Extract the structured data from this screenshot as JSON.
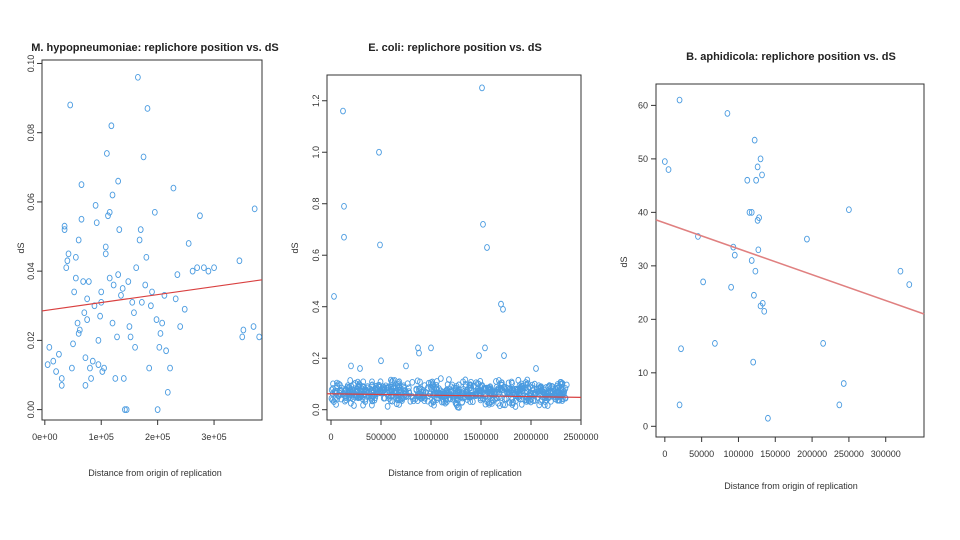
{
  "chart_data": [
    {
      "type": "scatter",
      "title": "M. hypopneumoniae: replichore position vs. dS",
      "xlabel": "Distance from origin of replication",
      "ylabel": "dS",
      "xlim": [
        -5000,
        385000
      ],
      "ylim": [
        -0.003,
        0.101
      ],
      "xticks": [
        0,
        100000,
        200000,
        300000
      ],
      "xtick_labels": [
        "0e+00",
        "1e+05",
        "2e+05",
        "3e+05"
      ],
      "yticks": [
        0.0,
        0.02,
        0.04,
        0.06,
        0.08,
        0.1
      ],
      "ytick_labels": [
        "0.00",
        "0.02",
        "0.04",
        "0.06",
        "0.08",
        "0.10"
      ],
      "regression": {
        "x": [
          -5000,
          385000
        ],
        "y": [
          0.0285,
          0.0375
        ]
      },
      "points": [
        [
          5000,
          0.013
        ],
        [
          8000,
          0.018
        ],
        [
          15000,
          0.014
        ],
        [
          20000,
          0.011
        ],
        [
          25000,
          0.016
        ],
        [
          30000,
          0.009
        ],
        [
          30000,
          0.007
        ],
        [
          35000,
          0.052
        ],
        [
          35000,
          0.053
        ],
        [
          38000,
          0.041
        ],
        [
          40000,
          0.043
        ],
        [
          42000,
          0.045
        ],
        [
          45000,
          0.088
        ],
        [
          48000,
          0.012
        ],
        [
          50000,
          0.019
        ],
        [
          52000,
          0.034
        ],
        [
          55000,
          0.038
        ],
        [
          55000,
          0.044
        ],
        [
          58000,
          0.025
        ],
        [
          60000,
          0.022
        ],
        [
          60000,
          0.049
        ],
        [
          62000,
          0.023
        ],
        [
          65000,
          0.055
        ],
        [
          65000,
          0.065
        ],
        [
          68000,
          0.037
        ],
        [
          70000,
          0.028
        ],
        [
          72000,
          0.015
        ],
        [
          72000,
          0.007
        ],
        [
          75000,
          0.026
        ],
        [
          75000,
          0.032
        ],
        [
          78000,
          0.037
        ],
        [
          80000,
          0.012
        ],
        [
          82000,
          0.009
        ],
        [
          85000,
          0.014
        ],
        [
          88000,
          0.03
        ],
        [
          90000,
          0.059
        ],
        [
          92000,
          0.054
        ],
        [
          95000,
          0.02
        ],
        [
          95000,
          0.013
        ],
        [
          98000,
          0.027
        ],
        [
          100000,
          0.034
        ],
        [
          100000,
          0.031
        ],
        [
          102000,
          0.011
        ],
        [
          105000,
          0.012
        ],
        [
          108000,
          0.045
        ],
        [
          108000,
          0.047
        ],
        [
          110000,
          0.074
        ],
        [
          112000,
          0.056
        ],
        [
          115000,
          0.038
        ],
        [
          115000,
          0.057
        ],
        [
          118000,
          0.082
        ],
        [
          120000,
          0.062
        ],
        [
          120000,
          0.025
        ],
        [
          122000,
          0.036
        ],
        [
          125000,
          0.009
        ],
        [
          128000,
          0.021
        ],
        [
          130000,
          0.039
        ],
        [
          130000,
          0.066
        ],
        [
          132000,
          0.052
        ],
        [
          135000,
          0.033
        ],
        [
          138000,
          0.035
        ],
        [
          140000,
          0.009
        ],
        [
          142000,
          0.0
        ],
        [
          145000,
          0.0
        ],
        [
          148000,
          0.037
        ],
        [
          150000,
          0.024
        ],
        [
          152000,
          0.021
        ],
        [
          155000,
          0.031
        ],
        [
          158000,
          0.028
        ],
        [
          160000,
          0.018
        ],
        [
          162000,
          0.041
        ],
        [
          165000,
          0.096
        ],
        [
          168000,
          0.049
        ],
        [
          170000,
          0.052
        ],
        [
          172000,
          0.031
        ],
        [
          175000,
          0.073
        ],
        [
          178000,
          0.036
        ],
        [
          180000,
          0.044
        ],
        [
          182000,
          0.087
        ],
        [
          185000,
          0.012
        ],
        [
          188000,
          0.03
        ],
        [
          190000,
          0.034
        ],
        [
          195000,
          0.057
        ],
        [
          198000,
          0.026
        ],
        [
          200000,
          0.0
        ],
        [
          203000,
          0.018
        ],
        [
          205000,
          0.022
        ],
        [
          208000,
          0.025
        ],
        [
          212000,
          0.033
        ],
        [
          215000,
          0.017
        ],
        [
          218000,
          0.005
        ],
        [
          222000,
          0.012
        ],
        [
          228000,
          0.064
        ],
        [
          232000,
          0.032
        ],
        [
          235000,
          0.039
        ],
        [
          240000,
          0.024
        ],
        [
          248000,
          0.029
        ],
        [
          255000,
          0.048
        ],
        [
          262000,
          0.04
        ],
        [
          270000,
          0.041
        ],
        [
          275000,
          0.056
        ],
        [
          282000,
          0.041
        ],
        [
          290000,
          0.04
        ],
        [
          300000,
          0.041
        ],
        [
          345000,
          0.043
        ],
        [
          350000,
          0.021
        ],
        [
          352000,
          0.023
        ],
        [
          370000,
          0.024
        ],
        [
          372000,
          0.058
        ],
        [
          380000,
          0.021
        ]
      ]
    },
    {
      "type": "scatter",
      "title": "E. coli: replichore position vs. dS",
      "xlabel": "Distance from origin of replication",
      "ylabel": "dS",
      "xlim": [
        -40000,
        2500000
      ],
      "ylim": [
        -0.04,
        1.3
      ],
      "xticks": [
        0,
        500000,
        1000000,
        1500000,
        2000000,
        2500000
      ],
      "xtick_labels": [
        "0",
        "500000",
        "1000000",
        "1500000",
        "2000000",
        "2500000"
      ],
      "yticks": [
        0.0,
        0.2,
        0.4,
        0.6,
        0.8,
        1.0,
        1.2
      ],
      "ytick_labels": [
        "0.0",
        "0.2",
        "0.4",
        "0.6",
        "0.8",
        "1.0",
        "1.2"
      ],
      "regression": {
        "x": [
          -40000,
          2500000
        ],
        "y": [
          0.062,
          0.048
        ]
      },
      "outliers": [
        [
          30000,
          0.44
        ],
        [
          120000,
          1.16
        ],
        [
          130000,
          0.79
        ],
        [
          130000,
          0.67
        ],
        [
          200000,
          0.17
        ],
        [
          290000,
          0.16
        ],
        [
          480000,
          1.0
        ],
        [
          490000,
          0.64
        ],
        [
          500000,
          0.19
        ],
        [
          750000,
          0.17
        ],
        [
          870000,
          0.24
        ],
        [
          880000,
          0.22
        ],
        [
          1000000,
          0.24
        ],
        [
          1480000,
          0.21
        ],
        [
          1510000,
          1.25
        ],
        [
          1520000,
          0.72
        ],
        [
          1540000,
          0.24
        ],
        [
          1560000,
          0.63
        ],
        [
          1700000,
          0.41
        ],
        [
          1720000,
          0.39
        ],
        [
          1730000,
          0.21
        ],
        [
          2050000,
          0.16
        ]
      ],
      "dense_cluster": {
        "x_range": [
          0,
          2370000
        ],
        "y_range": [
          0.0,
          0.13
        ],
        "approx_points": 700
      }
    },
    {
      "type": "scatter",
      "title": "B. aphidicola: replichore position vs. dS",
      "xlabel": "Distance from origin of replication",
      "ylabel": "dS",
      "xlim": [
        -12000,
        352000
      ],
      "ylim": [
        -2,
        64
      ],
      "xticks": [
        0,
        50000,
        100000,
        150000,
        200000,
        250000,
        300000
      ],
      "xtick_labels": [
        "0",
        "50000",
        "100000",
        "150000",
        "200000",
        "250000",
        "300000"
      ],
      "yticks": [
        0,
        10,
        20,
        30,
        40,
        50,
        60
      ],
      "ytick_labels": [
        "0",
        "10",
        "20",
        "30",
        "40",
        "50",
        "60"
      ],
      "regression": {
        "x": [
          -12000,
          352000
        ],
        "y": [
          38.6,
          21.0
        ]
      },
      "points": [
        [
          0,
          49.5
        ],
        [
          5000,
          48
        ],
        [
          20000,
          61
        ],
        [
          20000,
          4
        ],
        [
          22000,
          14.5
        ],
        [
          45000,
          35.5
        ],
        [
          52000,
          27
        ],
        [
          68000,
          15.5
        ],
        [
          85000,
          58.5
        ],
        [
          90000,
          26
        ],
        [
          93000,
          33.5
        ],
        [
          95000,
          32
        ],
        [
          112000,
          46
        ],
        [
          115000,
          40
        ],
        [
          118000,
          40
        ],
        [
          118000,
          31
        ],
        [
          120000,
          12
        ],
        [
          121000,
          24.5
        ],
        [
          122000,
          53.5
        ],
        [
          123000,
          29
        ],
        [
          124000,
          46
        ],
        [
          126000,
          48.5
        ],
        [
          126000,
          38.5
        ],
        [
          127000,
          33
        ],
        [
          128000,
          39
        ],
        [
          130000,
          50
        ],
        [
          130000,
          22.5
        ],
        [
          132000,
          47
        ],
        [
          133000,
          23
        ],
        [
          135000,
          21.5
        ],
        [
          140000,
          1.5
        ],
        [
          193000,
          35
        ],
        [
          215000,
          15.5
        ],
        [
          237000,
          4
        ],
        [
          243000,
          8
        ],
        [
          250000,
          40.5
        ],
        [
          320000,
          29
        ],
        [
          332000,
          26.5
        ]
      ]
    }
  ]
}
